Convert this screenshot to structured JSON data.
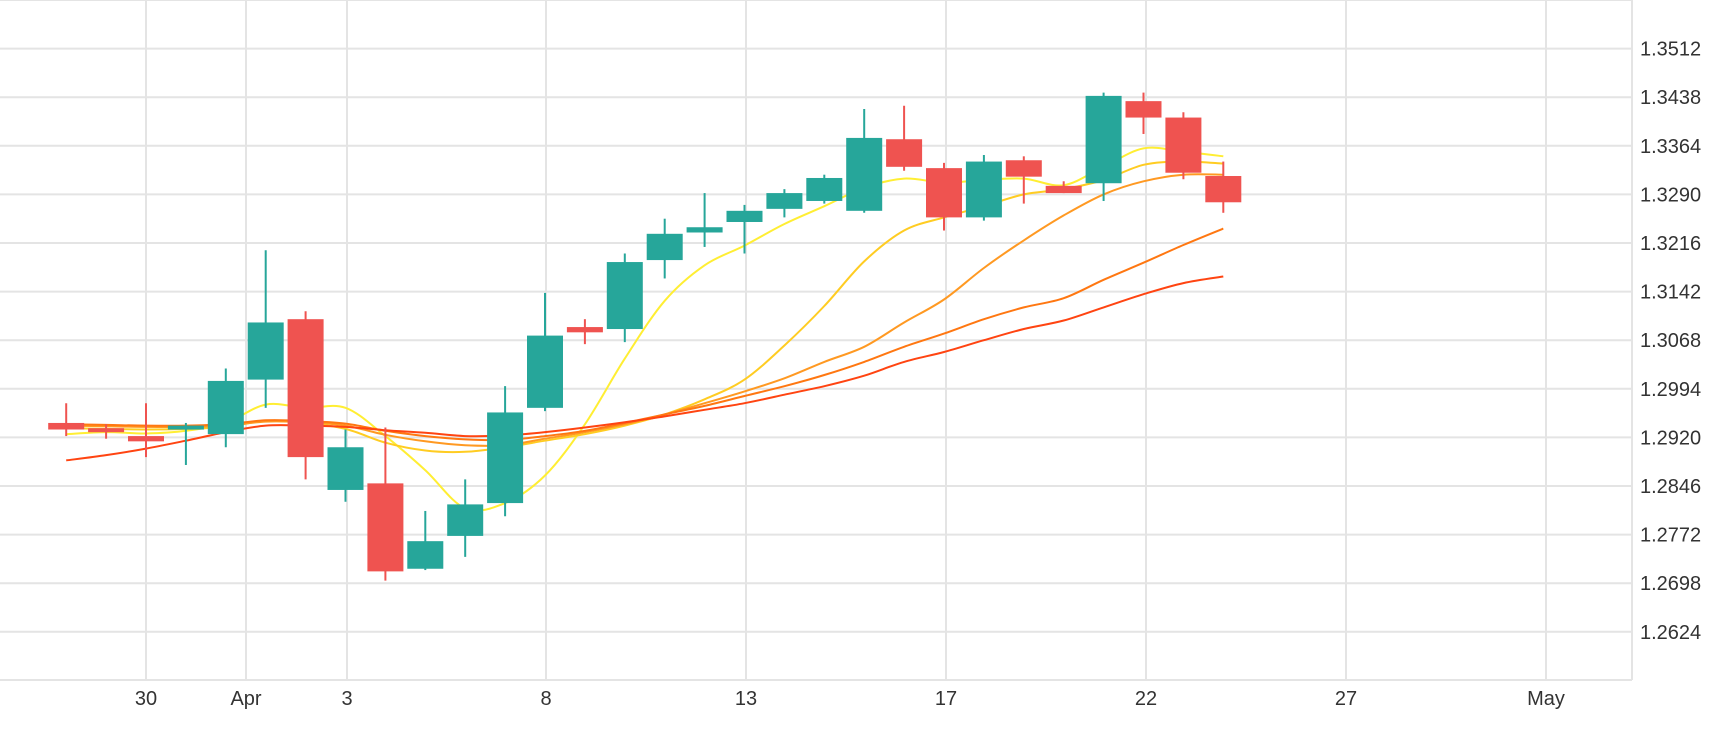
{
  "chart_data": {
    "type": "candlestick",
    "x_tick_labels": [
      "30",
      "Apr",
      "3",
      "8",
      "13",
      "17",
      "22",
      "27",
      "May"
    ],
    "y_tick_labels": [
      "1.3512",
      "1.3438",
      "1.3364",
      "1.3290",
      "1.3216",
      "1.3142",
      "1.3068",
      "1.2994",
      "1.2920",
      "1.2846",
      "1.2772",
      "1.2698",
      "1.2624"
    ],
    "ylim": [
      1.255,
      1.3586
    ],
    "grid": true,
    "candles": [
      {
        "day": 28,
        "open": 1.2942,
        "high": 1.2972,
        "low": 1.2922,
        "close": 1.2932
      },
      {
        "day": 29,
        "open": 1.2934,
        "high": 1.294,
        "low": 1.2918,
        "close": 1.293
      },
      {
        "day": 30,
        "open": 1.2922,
        "high": 1.2972,
        "low": 1.289,
        "close": 1.2914
      },
      {
        "day": 31,
        "open": 1.2932,
        "high": 1.2942,
        "low": 1.2878,
        "close": 1.2938
      },
      {
        "day": 32,
        "open": 1.2925,
        "high": 1.3025,
        "low": 1.2905,
        "close": 1.3006
      },
      {
        "day": 33,
        "open": 1.3008,
        "high": 1.3205,
        "low": 1.2965,
        "close": 1.3095
      },
      {
        "day": 34,
        "open": 1.31,
        "high": 1.3112,
        "low": 1.2856,
        "close": 1.289
      },
      {
        "day": 35,
        "open": 1.284,
        "high": 1.2932,
        "low": 1.2822,
        "close": 1.2905
      },
      {
        "day": 36,
        "open": 1.285,
        "high": 1.2935,
        "low": 1.2702,
        "close": 1.2716
      },
      {
        "day": 37,
        "open": 1.272,
        "high": 1.2808,
        "low": 1.2718,
        "close": 1.2762
      },
      {
        "day": 38,
        "open": 1.277,
        "high": 1.2856,
        "low": 1.2738,
        "close": 1.2818
      },
      {
        "day": 39,
        "open": 1.282,
        "high": 1.2998,
        "low": 1.28,
        "close": 1.2958
      },
      {
        "day": 40,
        "open": 1.2965,
        "high": 1.314,
        "low": 1.296,
        "close": 1.3075
      },
      {
        "day": 41,
        "open": 1.3088,
        "high": 1.31,
        "low": 1.3062,
        "close": 1.308
      },
      {
        "day": 42,
        "open": 1.3085,
        "high": 1.32,
        "low": 1.3065,
        "close": 1.3187
      },
      {
        "day": 43,
        "open": 1.319,
        "high": 1.3253,
        "low": 1.3162,
        "close": 1.323
      },
      {
        "day": 44,
        "open": 1.3232,
        "high": 1.3292,
        "low": 1.321,
        "close": 1.324
      },
      {
        "day": 45,
        "open": 1.3248,
        "high": 1.3274,
        "low": 1.32,
        "close": 1.3265
      },
      {
        "day": 46,
        "open": 1.3268,
        "high": 1.3298,
        "low": 1.3255,
        "close": 1.3292
      },
      {
        "day": 47,
        "open": 1.328,
        "high": 1.332,
        "low": 1.3276,
        "close": 1.3315
      },
      {
        "day": 48,
        "open": 1.3265,
        "high": 1.342,
        "low": 1.3262,
        "close": 1.3376
      },
      {
        "day": 49,
        "open": 1.3374,
        "high": 1.3425,
        "low": 1.3326,
        "close": 1.3332
      },
      {
        "day": 50,
        "open": 1.333,
        "high": 1.3338,
        "low": 1.3235,
        "close": 1.3255
      },
      {
        "day": 51,
        "open": 1.3255,
        "high": 1.335,
        "low": 1.325,
        "close": 1.334
      },
      {
        "day": 52,
        "open": 1.3342,
        "high": 1.3348,
        "low": 1.3276,
        "close": 1.3317
      },
      {
        "day": 53,
        "open": 1.3303,
        "high": 1.331,
        "low": 1.3292,
        "close": 1.3292
      },
      {
        "day": 54,
        "open": 1.3307,
        "high": 1.3445,
        "low": 1.328,
        "close": 1.344
      },
      {
        "day": 55,
        "open": 1.3432,
        "high": 1.3445,
        "low": 1.3382,
        "close": 1.3407
      },
      {
        "day": 56,
        "open": 1.3407,
        "high": 1.3415,
        "low": 1.3313,
        "close": 1.3323
      },
      {
        "day": 57,
        "open": 1.3318,
        "high": 1.334,
        "low": 1.3262,
        "close": 1.3278
      }
    ],
    "moving_averages": [
      {
        "color": "#ffee33",
        "values": [
          [
            28,
            1.2925
          ],
          [
            29,
            1.2928
          ],
          [
            30,
            1.2926
          ],
          [
            31,
            1.293
          ],
          [
            32,
            1.2942
          ],
          [
            33,
            1.297
          ],
          [
            34,
            1.2965
          ],
          [
            35,
            1.2965
          ],
          [
            36,
            1.2922
          ],
          [
            37,
            1.287
          ],
          [
            38,
            1.2812
          ],
          [
            39,
            1.282
          ],
          [
            40,
            1.2862
          ],
          [
            41,
            1.294
          ],
          [
            42,
            1.304
          ],
          [
            43,
            1.3128
          ],
          [
            44,
            1.3182
          ],
          [
            45,
            1.3212
          ],
          [
            46,
            1.3245
          ],
          [
            47,
            1.3272
          ],
          [
            48,
            1.33
          ],
          [
            49,
            1.3314
          ],
          [
            50,
            1.3308
          ],
          [
            51,
            1.3312
          ],
          [
            52,
            1.3314
          ],
          [
            53,
            1.3304
          ],
          [
            54,
            1.3332
          ],
          [
            55,
            1.336
          ],
          [
            56,
            1.3355
          ],
          [
            57,
            1.3348
          ]
        ]
      },
      {
        "color": "#ffcc22",
        "values": [
          [
            28,
            1.2934
          ],
          [
            29,
            1.2933
          ],
          [
            30,
            1.2932
          ],
          [
            31,
            1.2933
          ],
          [
            32,
            1.2936
          ],
          [
            33,
            1.2945
          ],
          [
            34,
            1.2942
          ],
          [
            35,
            1.2933
          ],
          [
            36,
            1.2912
          ],
          [
            37,
            1.29
          ],
          [
            38,
            1.2898
          ],
          [
            39,
            1.2905
          ],
          [
            40,
            1.2915
          ],
          [
            41,
            1.2925
          ],
          [
            42,
            1.2938
          ],
          [
            43,
            1.2955
          ],
          [
            44,
            1.2978
          ],
          [
            45,
            1.3008
          ],
          [
            46,
            1.306
          ],
          [
            47,
            1.312
          ],
          [
            48,
            1.3188
          ],
          [
            49,
            1.3235
          ],
          [
            50,
            1.3255
          ],
          [
            51,
            1.3272
          ],
          [
            52,
            1.329
          ],
          [
            53,
            1.3298
          ],
          [
            54,
            1.3312
          ],
          [
            55,
            1.3335
          ],
          [
            56,
            1.334
          ],
          [
            57,
            1.3337
          ]
        ]
      },
      {
        "color": "#ff9922",
        "values": [
          [
            28,
            1.2938
          ],
          [
            29,
            1.2937
          ],
          [
            30,
            1.2936
          ],
          [
            31,
            1.2936
          ],
          [
            32,
            1.2938
          ],
          [
            33,
            1.2944
          ],
          [
            34,
            1.2943
          ],
          [
            35,
            1.2938
          ],
          [
            36,
            1.2924
          ],
          [
            37,
            1.2914
          ],
          [
            38,
            1.2908
          ],
          [
            39,
            1.2908
          ],
          [
            40,
            1.2918
          ],
          [
            41,
            1.2928
          ],
          [
            42,
            1.294
          ],
          [
            43,
            1.2955
          ],
          [
            44,
            1.2972
          ],
          [
            45,
            1.299
          ],
          [
            46,
            1.301
          ],
          [
            47,
            1.3035
          ],
          [
            48,
            1.3058
          ],
          [
            49,
            1.3095
          ],
          [
            50,
            1.313
          ],
          [
            51,
            1.3178
          ],
          [
            52,
            1.322
          ],
          [
            53,
            1.3258
          ],
          [
            54,
            1.329
          ],
          [
            55,
            1.331
          ],
          [
            56,
            1.332
          ],
          [
            57,
            1.332
          ]
        ]
      },
      {
        "color": "#ff7711",
        "values": [
          [
            28,
            1.294
          ],
          [
            29,
            1.2939
          ],
          [
            30,
            1.2938
          ],
          [
            31,
            1.2938
          ],
          [
            32,
            1.294
          ],
          [
            33,
            1.2946
          ],
          [
            34,
            1.2945
          ],
          [
            35,
            1.2941
          ],
          [
            36,
            1.293
          ],
          [
            37,
            1.2922
          ],
          [
            38,
            1.2917
          ],
          [
            39,
            1.2916
          ],
          [
            40,
            1.2922
          ],
          [
            41,
            1.293
          ],
          [
            42,
            1.2942
          ],
          [
            43,
            1.2955
          ],
          [
            44,
            1.2968
          ],
          [
            45,
            1.2983
          ],
          [
            46,
            1.2998
          ],
          [
            47,
            1.3015
          ],
          [
            48,
            1.3035
          ],
          [
            49,
            1.3058
          ],
          [
            50,
            1.3078
          ],
          [
            51,
            1.31
          ],
          [
            52,
            1.3118
          ],
          [
            53,
            1.3132
          ],
          [
            54,
            1.316
          ],
          [
            55,
            1.3186
          ],
          [
            56,
            1.3213
          ],
          [
            57,
            1.3238
          ]
        ]
      },
      {
        "color": "#ff4411",
        "values": [
          [
            28,
            1.2885
          ],
          [
            29,
            1.2893
          ],
          [
            30,
            1.2903
          ],
          [
            31,
            1.2915
          ],
          [
            32,
            1.2928
          ],
          [
            33,
            1.2938
          ],
          [
            34,
            1.2938
          ],
          [
            35,
            1.2936
          ],
          [
            36,
            1.2931
          ],
          [
            37,
            1.2927
          ],
          [
            38,
            1.2922
          ],
          [
            39,
            1.2923
          ],
          [
            40,
            1.2928
          ],
          [
            41,
            1.2935
          ],
          [
            42,
            1.2943
          ],
          [
            43,
            1.2952
          ],
          [
            44,
            1.2962
          ],
          [
            45,
            1.2972
          ],
          [
            46,
            1.2985
          ],
          [
            47,
            1.2998
          ],
          [
            48,
            1.3014
          ],
          [
            49,
            1.3035
          ],
          [
            50,
            1.305
          ],
          [
            51,
            1.3068
          ],
          [
            52,
            1.3085
          ],
          [
            53,
            1.3098
          ],
          [
            54,
            1.3118
          ],
          [
            55,
            1.3138
          ],
          [
            56,
            1.3155
          ],
          [
            57,
            1.3165
          ]
        ]
      }
    ],
    "colors": {
      "up": "#26a69a",
      "down": "#ef5350",
      "grid": "#e4e4e4",
      "text": "#333333"
    }
  }
}
